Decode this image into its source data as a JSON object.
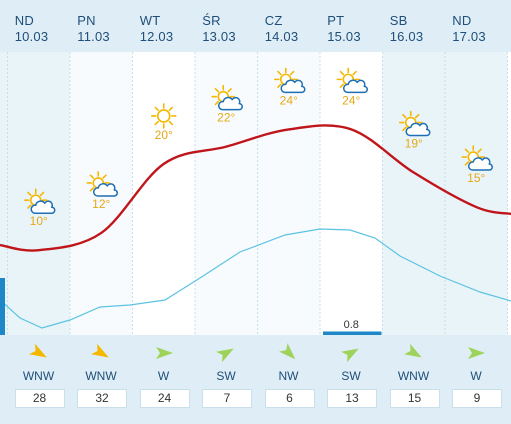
{
  "forecast": {
    "days": [
      {
        "weekday": "ND",
        "date": "10.03",
        "temp": "10°",
        "temp_value": 10,
        "wind_dir": "WNW",
        "wind_speed": "28",
        "icon": "partly-cloudy-icon"
      },
      {
        "weekday": "PN",
        "date": "11.03",
        "temp": "12°",
        "temp_value": 12,
        "wind_dir": "WNW",
        "wind_speed": "32",
        "icon": "partly-cloudy-icon"
      },
      {
        "weekday": "WT",
        "date": "12.03",
        "temp": "20°",
        "temp_value": 20,
        "wind_dir": "W",
        "wind_speed": "24",
        "icon": "sun-icon"
      },
      {
        "weekday": "ŚR",
        "date": "13.03",
        "temp": "22°",
        "temp_value": 22,
        "wind_dir": "SW",
        "wind_speed": "7",
        "icon": "partly-cloudy-icon"
      },
      {
        "weekday": "CZ",
        "date": "14.03",
        "temp": "24°",
        "temp_value": 24,
        "wind_dir": "NW",
        "wind_speed": "6",
        "icon": "partly-cloudy-icon"
      },
      {
        "weekday": "PT",
        "date": "15.03",
        "temp": "24°",
        "temp_value": 24,
        "wind_dir": "SW",
        "wind_speed": "13",
        "icon": "partly-cloudy-icon"
      },
      {
        "weekday": "SB",
        "date": "16.03",
        "temp": "19°",
        "temp_value": 19,
        "wind_dir": "WNW",
        "wind_speed": "15",
        "icon": "partly-cloudy-icon"
      },
      {
        "weekday": "ND",
        "date": "17.03",
        "temp": "15°",
        "temp_value": 15,
        "wind_dir": "W",
        "wind_speed": "9",
        "icon": "partly-cloudy-icon"
      }
    ],
    "precipitation": {
      "day_index": 5,
      "amount": "0.8"
    }
  },
  "colors": {
    "temperature_line": "#c0151b",
    "secondary_line": "#5bc4e0",
    "header_bg": "#dfeef6",
    "column_light": "#e9f4f9",
    "accent_blue": "#1e87c7",
    "wind_arrow_east": "#f5b800",
    "wind_arrow_west": "#9ed35b",
    "temp_label": "#e6a817"
  }
}
